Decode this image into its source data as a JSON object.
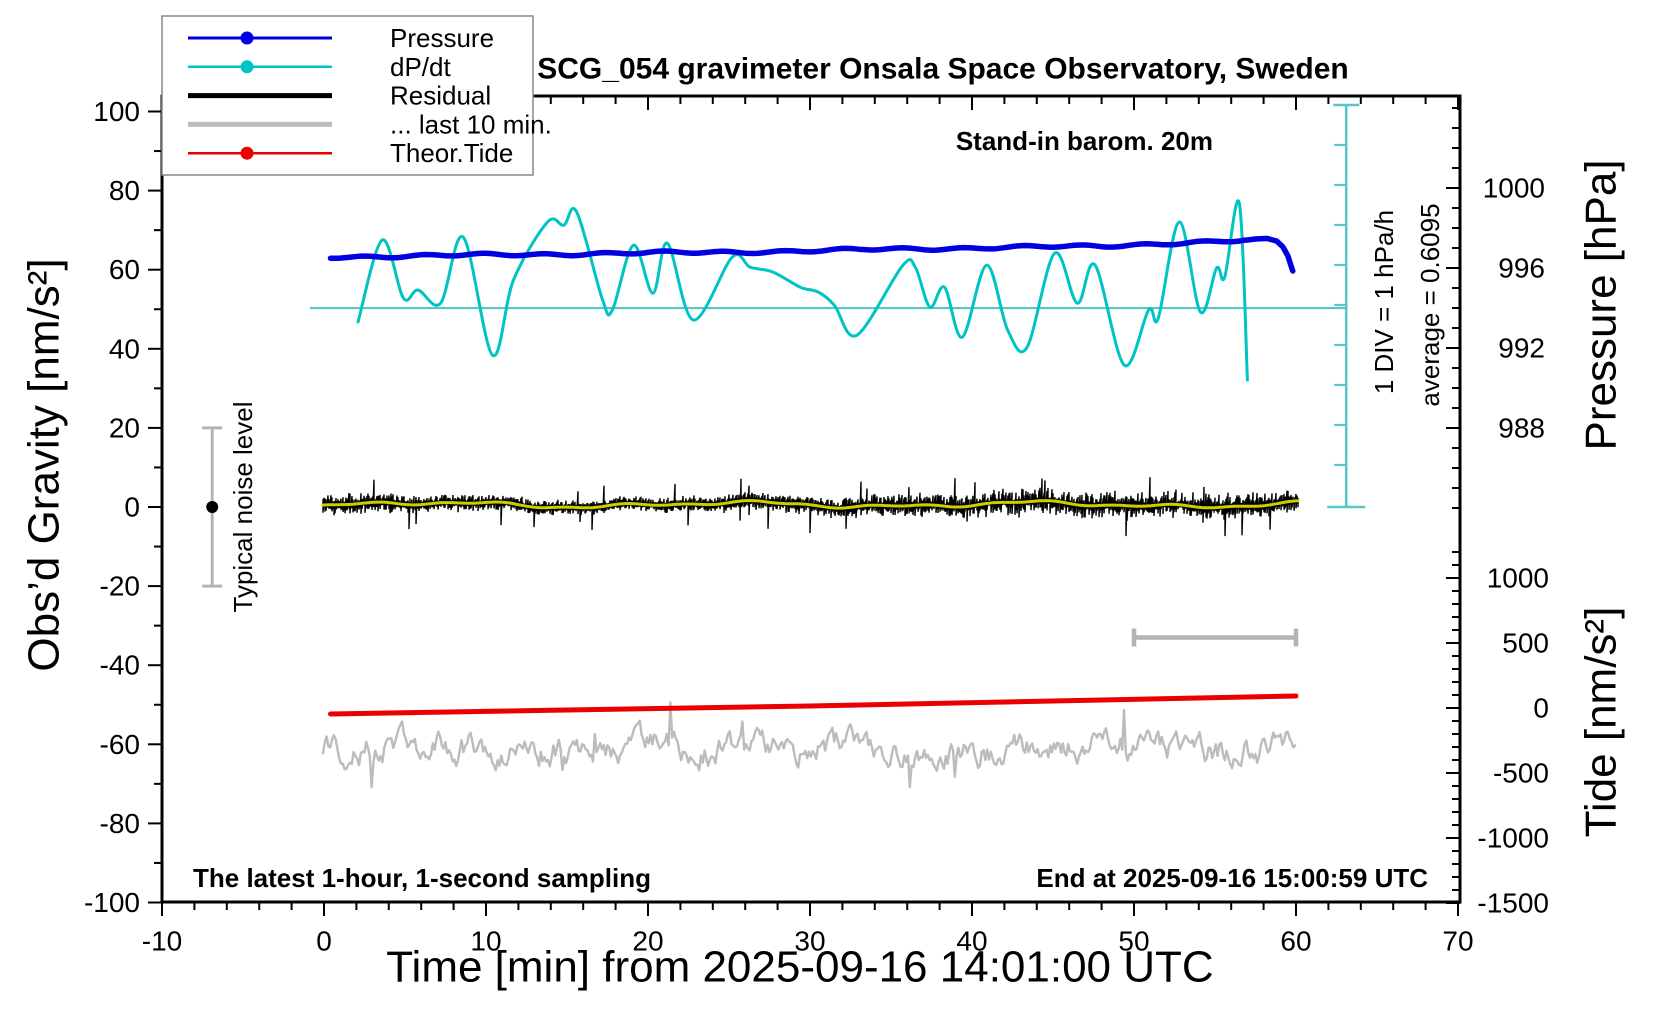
{
  "title": "SCG_054 gravimeter Onsala Space Observatory, Sweden",
  "annotations": {
    "barometer": "Stand-in barom. 20m",
    "div_scale": "1 DIV = 1 hPa/h",
    "average": "average = 0.6095",
    "noise_label": "Typical noise level",
    "sampling": "The latest 1-hour, 1-second sampling",
    "end_time": "End at 2025-09-16 15:00:59 UTC"
  },
  "axes": {
    "x": {
      "title": "Time [min] from 2025-09-16 14:01:00 UTC",
      "min": -10,
      "max": 70,
      "major_ticks": [
        -10,
        0,
        10,
        20,
        30,
        40,
        50,
        60,
        70
      ],
      "minor_step": 2
    },
    "gravity": {
      "title": "Obs’d Gravity [nm/s²]",
      "min": -100,
      "max": 100,
      "major_ticks": [
        100,
        80,
        60,
        40,
        20,
        0,
        -20,
        -40,
        -60,
        -80,
        -100
      ],
      "minor_step": 10
    },
    "pressure": {
      "title": "Pressure [hPa]",
      "major_ticks": [
        1000,
        996,
        992,
        988
      ],
      "minor_step": 1,
      "tick_min": 984,
      "tick_max": 1004
    },
    "tide": {
      "title": "Tide [nm/s²]",
      "major_ticks": [
        1000,
        500,
        0,
        -500,
        -1000,
        -1500
      ],
      "minor_step": 100,
      "tick_min": -1500,
      "tick_max": 1200
    }
  },
  "legend": {
    "items": [
      {
        "label": "Pressure",
        "color": "#0000e0",
        "lw": 3,
        "marker": true
      },
      {
        "label": "dP/dt",
        "color": "#00c3c3",
        "lw": 2.5,
        "marker": true
      },
      {
        "label": "Residual",
        "color": "#000000",
        "lw": 5,
        "marker": false
      },
      {
        "label": "... last 10 min.",
        "color": "#bcbcbc",
        "lw": 5,
        "marker": false
      },
      {
        "label": "Theor.Tide",
        "color": "#ea0000",
        "lw": 2.5,
        "marker": true
      }
    ]
  },
  "colors": {
    "pressure_line": "#0000e0",
    "dpdt_line": "#00c3c3",
    "dpdt_scale": "#56c6c6",
    "residual": "#000000",
    "residual_smooth": "#cdcd00",
    "last10": "#bcbcbc",
    "tide_line": "#ea0000",
    "noise_bar": "#b4b4b4",
    "axis": "#000000"
  },
  "chart_data": {
    "type": "line",
    "title": "SCG_054 gravimeter Onsala Space Observatory, Sweden",
    "xlabel": "Time [min] from 2025-09-16 14:01:00 UTC",
    "x_range_min": [
      -10,
      70
    ],
    "gravity_range": [
      -100,
      100
    ],
    "pressure_axis_ticks": [
      988,
      992,
      996,
      1000
    ],
    "tide_axis_ticks": [
      -1500,
      -1000,
      -500,
      0,
      500,
      1000
    ],
    "legend_position": "top-left",
    "grid": false,
    "series": [
      {
        "name": "Pressure",
        "units": "hPa",
        "axis": "pressure-right",
        "points": [
          [
            0.4,
            996.55
          ],
          [
            5,
            996.6
          ],
          [
            10,
            996.65
          ],
          [
            15,
            996.7
          ],
          [
            20,
            996.75
          ],
          [
            25,
            996.8
          ],
          [
            30,
            996.85
          ],
          [
            35,
            996.95
          ],
          [
            40,
            997.0
          ],
          [
            44,
            997.05
          ],
          [
            48,
            997.1
          ],
          [
            51,
            997.2
          ],
          [
            53,
            997.25
          ],
          [
            55,
            997.3
          ],
          [
            56.5,
            997.35
          ],
          [
            57.5,
            997.45
          ],
          [
            58.2,
            997.48
          ],
          [
            58.8,
            997.35
          ],
          [
            59.2,
            997.05
          ],
          [
            59.5,
            996.6
          ],
          [
            59.8,
            995.85
          ]
        ]
      },
      {
        "name": "dP/dt",
        "units": "hPa/h",
        "axis": "1 DIV = 1 hPa/h scale bar",
        "average": 0.6095,
        "points": [
          [
            2.1,
            0.26
          ],
          [
            3.6,
            2.31
          ],
          [
            4.9,
            0.86
          ],
          [
            5.8,
            1.06
          ],
          [
            7.2,
            0.73
          ],
          [
            8.6,
            2.38
          ],
          [
            10.4,
            -0.57
          ],
          [
            11.7,
            1.31
          ],
          [
            13.8,
            2.76
          ],
          [
            14.8,
            2.68
          ],
          [
            15.6,
            3.01
          ],
          [
            17.2,
            0.81
          ],
          [
            17.8,
            0.56
          ],
          [
            19.1,
            2.18
          ],
          [
            20.3,
            0.98
          ],
          [
            21.2,
            2.23
          ],
          [
            22.8,
            0.31
          ],
          [
            25.2,
            1.88
          ],
          [
            26.3,
            1.63
          ],
          [
            27.7,
            1.51
          ],
          [
            29.4,
            1.13
          ],
          [
            30.5,
            1.01
          ],
          [
            31.5,
            0.68
          ],
          [
            32.9,
            -0.07
          ],
          [
            35.7,
            1.66
          ],
          [
            36.5,
            1.63
          ],
          [
            37.4,
            0.63
          ],
          [
            38.3,
            1.13
          ],
          [
            39.4,
            -0.12
          ],
          [
            40.9,
            1.68
          ],
          [
            42.2,
            0.06
          ],
          [
            43.4,
            -0.37
          ],
          [
            45.1,
            1.98
          ],
          [
            46.5,
            0.73
          ],
          [
            47.6,
            1.68
          ],
          [
            49.4,
            -0.82
          ],
          [
            50.9,
            0.56
          ],
          [
            51.5,
            0.36
          ],
          [
            52.8,
            2.76
          ],
          [
            54.1,
            0.51
          ],
          [
            55.1,
            1.61
          ],
          [
            55.6,
            1.38
          ],
          [
            56.5,
            3.23
          ],
          [
            57.0,
            -1.19
          ]
        ]
      },
      {
        "name": "Theor.Tide",
        "units": "nm/s²",
        "axis": "tide-right",
        "points": [
          [
            0.4,
            -46
          ],
          [
            15,
            -15
          ],
          [
            30,
            15
          ],
          [
            45,
            54
          ],
          [
            60,
            92
          ]
        ]
      },
      {
        "name": "Residual",
        "units": "nm/s²",
        "axis": "gravity-left",
        "description": "1-second samples, 0-60 min",
        "mean": 0.5,
        "typical_amplitude": 3.5,
        "max_excursion": 8.5
      },
      {
        "name": "Residual smoothed (yellow)",
        "units": "nm/s²",
        "axis": "gravity-left",
        "mean": 0.6,
        "typical_amplitude": 1.2
      },
      {
        "name": "... last 10 min.",
        "units": "nm/s²",
        "axis": "gravity-left",
        "description": "last 10 minutes of residual stretched to full hour, offset",
        "mean": -61,
        "typical_amplitude": 3,
        "max_excursion": 11
      }
    ],
    "markers": {
      "noise_level_bar": {
        "t_min": -6.9,
        "center_gravity": 0,
        "half_range_gravity": 20
      },
      "dpdt_average_line_gravity_y": 50.3,
      "dpdt_scalebar": {
        "t_min": 63.1,
        "gravity_top": 100,
        "gravity_bottom": 0,
        "div_hpa_per_h": 1
      },
      "last10_span_bar": {
        "from_min": 50,
        "to_min": 60,
        "gravity_y": -33
      }
    }
  }
}
